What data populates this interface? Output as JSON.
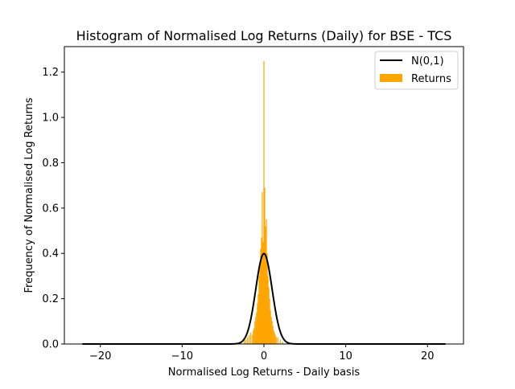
{
  "chart_data": {
    "type": "bar",
    "title": "Histogram of Normalised Log Returns (Daily) for BSE - TCS",
    "xlabel": "Normalised Log Returns - Daily basis",
    "ylabel": "Frequency of Normalised Log Returns",
    "xlim": [
      -24.4,
      24.4
    ],
    "ylim": [
      0,
      1.3125
    ],
    "xticks": [
      -20,
      -10,
      0,
      10,
      20
    ],
    "yticks": [
      0.0,
      0.2,
      0.4,
      0.6,
      0.8,
      1.0,
      1.2
    ],
    "xtick_labels": [
      "−20",
      "−10",
      "0",
      "10",
      "20"
    ],
    "ytick_labels": [
      "0.0",
      "0.2",
      "0.4",
      "0.6",
      "0.8",
      "1.0",
      "1.2"
    ],
    "grid": false,
    "legend_position": "top-right",
    "legend": [
      {
        "label": "N(0,1)",
        "kind": "line",
        "color": "#000000"
      },
      {
        "label": "Returns",
        "kind": "patch",
        "color": "#ffa500"
      }
    ],
    "series": [
      {
        "name": "N(0,1)",
        "kind": "line",
        "color": "#000000",
        "curve": "standard-normal-pdf",
        "x_range": [
          -22.2,
          22.2
        ]
      },
      {
        "name": "Returns",
        "kind": "histogram",
        "color": "#ffa500",
        "bin_width": 0.1,
        "bins": [
          {
            "x": -2.4,
            "y": 0.02
          },
          {
            "x": -2.2,
            "y": 0.02
          },
          {
            "x": -2.0,
            "y": 0.03
          },
          {
            "x": -1.8,
            "y": 0.04
          },
          {
            "x": -1.6,
            "y": 0.05
          },
          {
            "x": -1.4,
            "y": 0.04
          },
          {
            "x": -1.3,
            "y": 0.06
          },
          {
            "x": -1.2,
            "y": 0.07
          },
          {
            "x": -1.1,
            "y": 0.1
          },
          {
            "x": -1.0,
            "y": 0.12
          },
          {
            "x": -0.9,
            "y": 0.14
          },
          {
            "x": -0.8,
            "y": 0.18
          },
          {
            "x": -0.7,
            "y": 0.22
          },
          {
            "x": -0.6,
            "y": 0.3
          },
          {
            "x": -0.5,
            "y": 0.35
          },
          {
            "x": -0.4,
            "y": 0.42
          },
          {
            "x": -0.3,
            "y": 0.47
          },
          {
            "x": -0.2,
            "y": 0.67
          },
          {
            "x": -0.1,
            "y": 0.45
          },
          {
            "x": 0.0,
            "y": 1.25
          },
          {
            "x": 0.1,
            "y": 0.69
          },
          {
            "x": 0.2,
            "y": 0.52
          },
          {
            "x": 0.3,
            "y": 0.55
          },
          {
            "x": 0.4,
            "y": 0.4
          },
          {
            "x": 0.5,
            "y": 0.3
          },
          {
            "x": 0.6,
            "y": 0.25
          },
          {
            "x": 0.7,
            "y": 0.2
          },
          {
            "x": 0.8,
            "y": 0.15
          },
          {
            "x": 0.9,
            "y": 0.12
          },
          {
            "x": 1.0,
            "y": 0.1
          },
          {
            "x": 1.1,
            "y": 0.08
          },
          {
            "x": 1.2,
            "y": 0.06
          },
          {
            "x": 1.3,
            "y": 0.05
          },
          {
            "x": 1.4,
            "y": 0.04
          },
          {
            "x": 1.5,
            "y": 0.03
          },
          {
            "x": 1.7,
            "y": 0.03
          },
          {
            "x": 2.0,
            "y": 0.02
          },
          {
            "x": 2.3,
            "y": 0.01
          }
        ]
      }
    ]
  }
}
